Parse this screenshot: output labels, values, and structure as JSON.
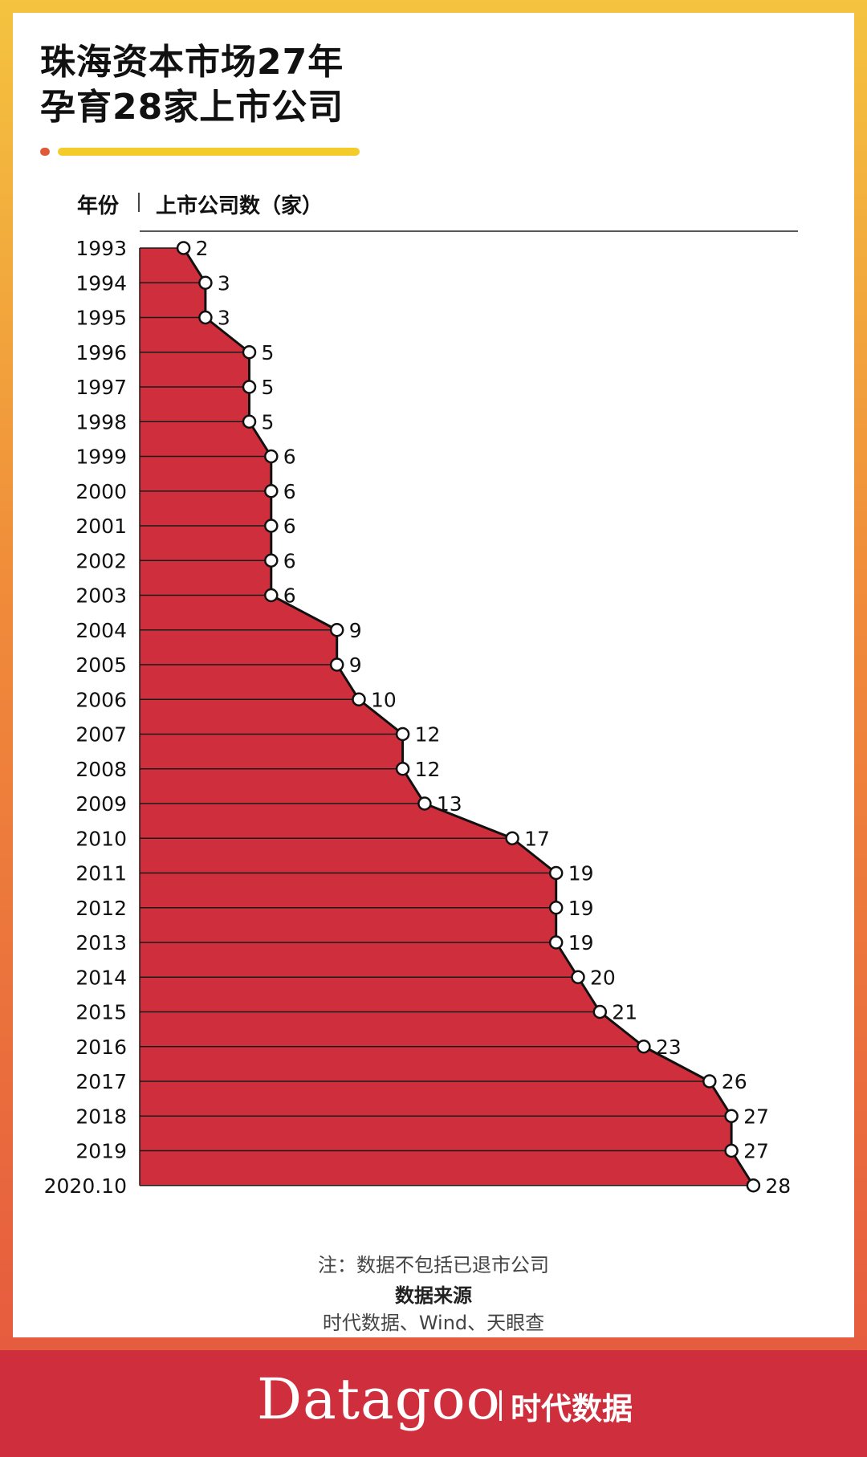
{
  "title_lines": [
    "珠海资本市场27年",
    "孕育28家上市公司"
  ],
  "header": {
    "year_col": "年份",
    "count_col": "上市公司数（家）"
  },
  "chart_data": {
    "type": "area",
    "orientation": "horizontal",
    "title": "珠海资本市场27年孕育28家上市公司",
    "xlabel": "上市公司数（家）",
    "ylabel": "年份",
    "categories": [
      "1993",
      "1994",
      "1995",
      "1996",
      "1997",
      "1998",
      "1999",
      "2000",
      "2001",
      "2002",
      "2003",
      "2004",
      "2005",
      "2006",
      "2007",
      "2008",
      "2009",
      "2010",
      "2011",
      "2012",
      "2013",
      "2014",
      "2015",
      "2016",
      "2017",
      "2018",
      "2019",
      "2020.10"
    ],
    "values": [
      2,
      3,
      3,
      5,
      5,
      5,
      6,
      6,
      6,
      6,
      6,
      9,
      9,
      10,
      12,
      12,
      13,
      17,
      19,
      19,
      19,
      20,
      21,
      23,
      26,
      27,
      27,
      28
    ],
    "xlim": [
      0,
      28
    ],
    "grid": true,
    "fill_color": "#cf2e3c",
    "line_color": "#111111"
  },
  "note": "注：数据不包括已退市公司",
  "source_title": "数据来源",
  "source_text": "时代数据、Wind、天眼查",
  "brand": {
    "name": "Datagoo",
    "cn": "时代数据"
  }
}
